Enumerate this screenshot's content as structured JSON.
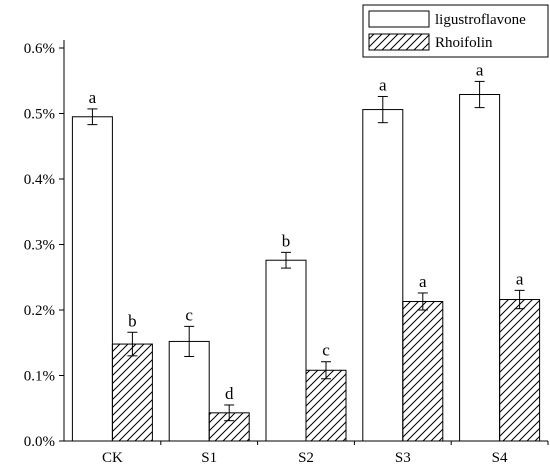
{
  "chart_data": {
    "type": "bar",
    "title": "",
    "xlabel": "",
    "ylabel": "",
    "categories": [
      "CK",
      "S1",
      "S2",
      "S3",
      "S4"
    ],
    "ylim": [
      0,
      0.6
    ],
    "y_ticks": [
      0,
      0.1,
      0.2,
      0.3,
      0.4,
      0.5,
      0.6
    ],
    "y_tick_labels": [
      "0.0%",
      "0.1%",
      "0.2%",
      "0.3%",
      "0.4%",
      "0.5%",
      "0.6%"
    ],
    "legend_position": "top-right",
    "grid": false,
    "series": [
      {
        "name": "ligustroflavone",
        "fill": "white",
        "values": [
          0.495,
          0.152,
          0.276,
          0.506,
          0.529
        ],
        "errors": [
          0.012,
          0.023,
          0.012,
          0.02,
          0.02
        ],
        "letters": [
          "a",
          "c",
          "b",
          "a",
          "a"
        ]
      },
      {
        "name": "Rhoifolin",
        "fill": "hatched",
        "values": [
          0.148,
          0.043,
          0.108,
          0.213,
          0.216
        ],
        "errors": [
          0.018,
          0.012,
          0.013,
          0.013,
          0.014
        ],
        "letters": [
          "b",
          "d",
          "c",
          "a",
          "a"
        ]
      }
    ]
  }
}
